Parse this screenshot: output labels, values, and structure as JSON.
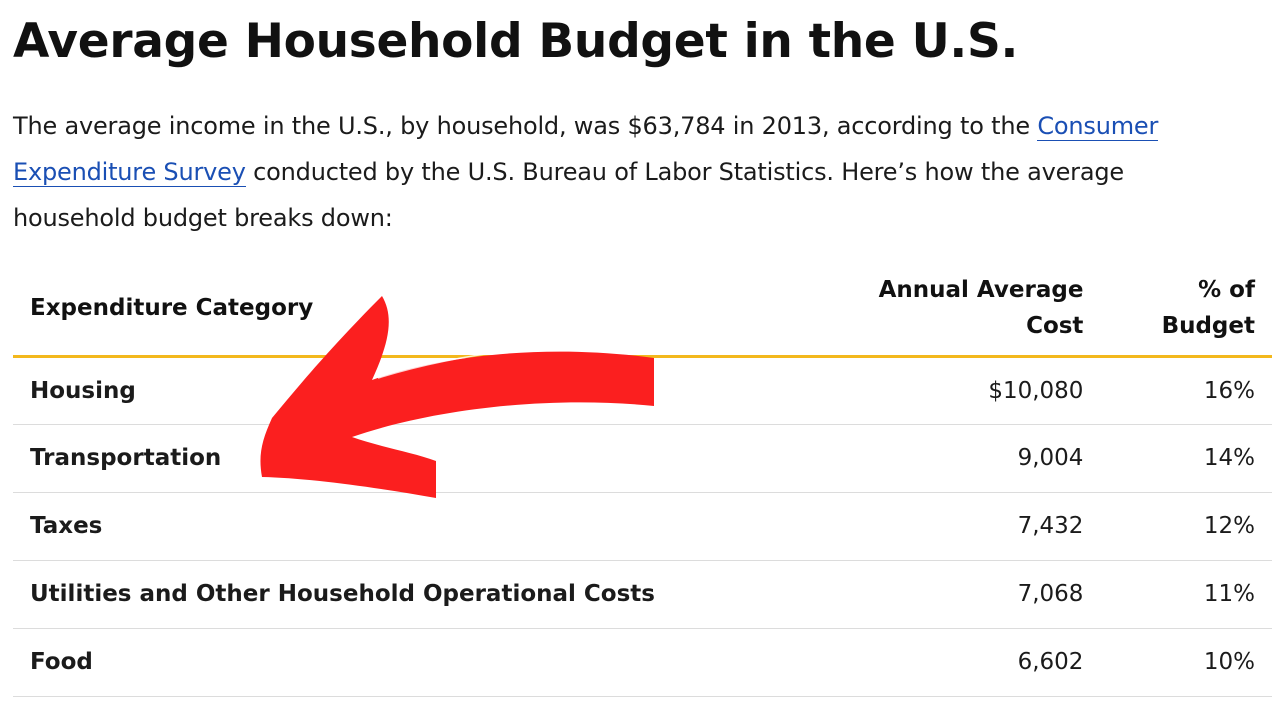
{
  "title": "Average Household Budget in the U.S.",
  "intro": {
    "before_link": "The average income in the U.S., by household, was $63,784 in 2013, according to the ",
    "link_text": "Consumer Expenditure Survey",
    "after_link": " conducted by the U.S. Bureau of Labor Statistics. Here’s how the average household budget breaks down:"
  },
  "table": {
    "headers": {
      "category": "Expenditure Category",
      "cost_line1": "Annual Average",
      "cost_line2": "Cost",
      "pct_line1": "% of",
      "pct_line2": "Budget"
    },
    "rows": [
      {
        "category": "Housing",
        "cost": "$10,080",
        "pct": "16%"
      },
      {
        "category": "Transportation",
        "cost": "9,004",
        "pct": "14%"
      },
      {
        "category": "Taxes",
        "cost": "7,432",
        "pct": "12%"
      },
      {
        "category": "Utilities and Other Household Operational Costs",
        "cost": "7,068",
        "pct": "11%"
      },
      {
        "category": "Food",
        "cost": "6,602",
        "pct": "10%"
      }
    ]
  },
  "colors": {
    "link": "#1a4fb4",
    "header_rule": "#f3b81c",
    "arrow": "#fb1f1f"
  },
  "annotation": {
    "icon": "red-arrow-icon"
  }
}
